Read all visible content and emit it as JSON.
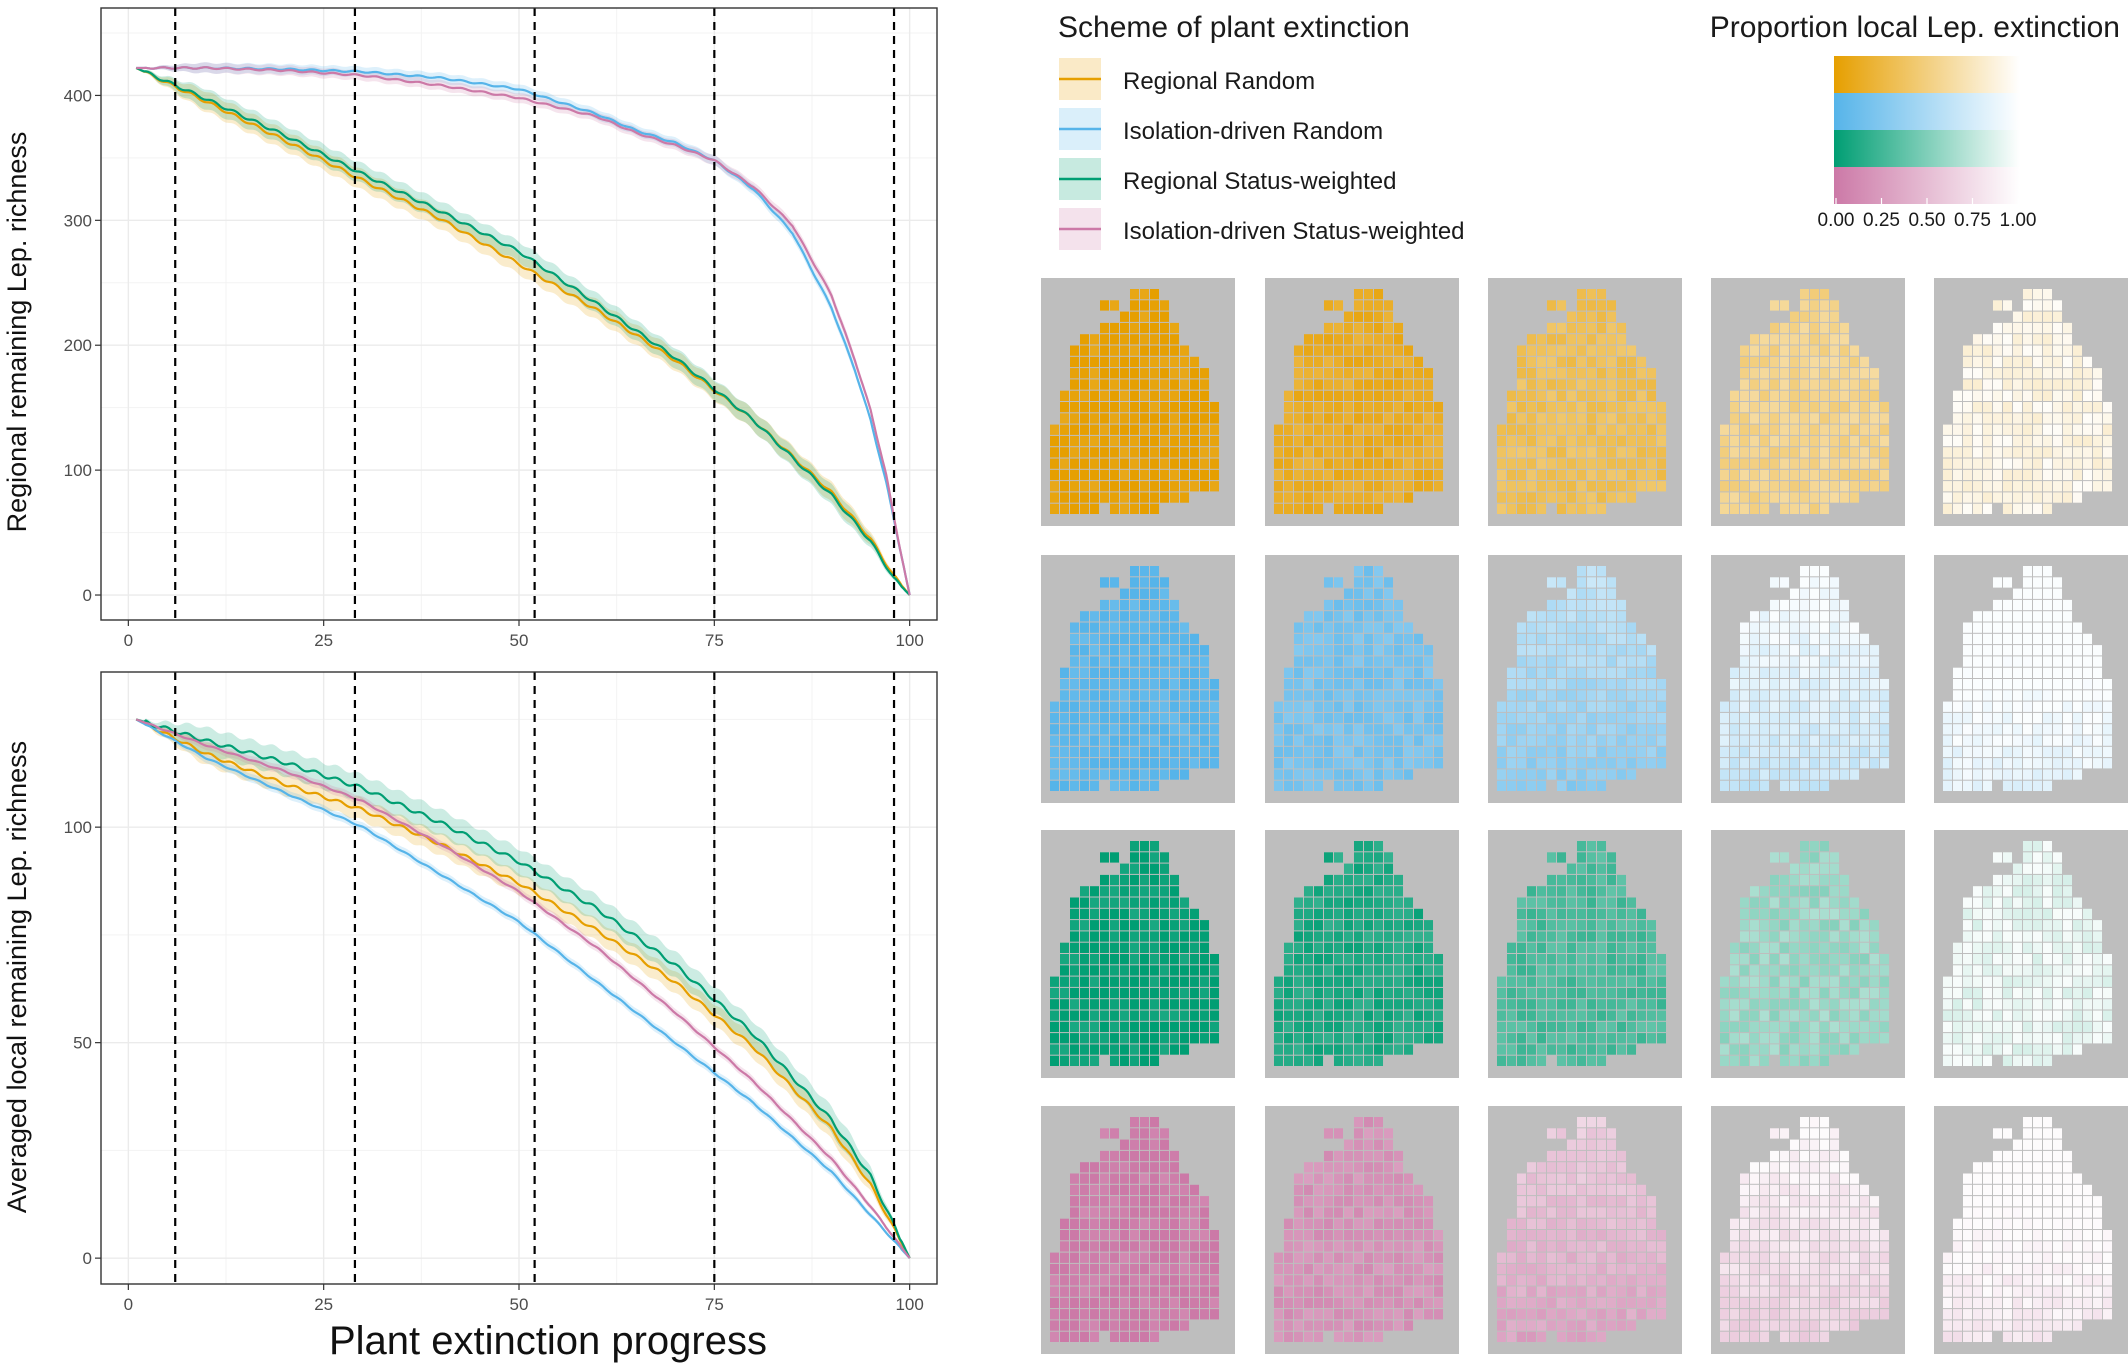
{
  "colors": {
    "regional_random": "#E69F00",
    "isolation_random": "#56B4E9",
    "regional_status": "#009E73",
    "isolation_status": "#CC79A7",
    "map_background": "#BEBEBE",
    "grid": "#EBEBEB"
  },
  "legend": {
    "title": "Scheme of plant extinction",
    "items": [
      {
        "label": "Regional Random",
        "color": "#E69F00"
      },
      {
        "label": "Isolation-driven Random",
        "color": "#56B4E9"
      },
      {
        "label": "Regional Status-weighted",
        "color": "#009E73"
      },
      {
        "label": "Isolation-driven Status-weighted",
        "color": "#CC79A7"
      }
    ]
  },
  "colorbar": {
    "title": "Proportion local Lep. extinction",
    "ticks": [
      "0.00",
      "0.25",
      "0.50",
      "0.75",
      "1.00"
    ]
  },
  "shared_xlabel": "Plant extinction progress",
  "map_grid": {
    "rows": [
      "Regional Random",
      "Isolation-driven Random",
      "Regional Status-weighted",
      "Isolation-driven Status-weighted"
    ],
    "stages": [
      6,
      29,
      52,
      75,
      98
    ],
    "mean_extinction_levels": [
      [
        0.02,
        0.15,
        0.35,
        0.55,
        0.9
      ],
      [
        0.03,
        0.2,
        0.45,
        0.8,
        0.98
      ],
      [
        0.02,
        0.12,
        0.3,
        0.6,
        0.92
      ],
      [
        0.03,
        0.2,
        0.45,
        0.78,
        0.97
      ]
    ]
  },
  "chart_data": [
    {
      "type": "line",
      "title": "",
      "xlabel": "",
      "ylabel": "Regional remaining Lep. richness",
      "xlim": [
        -3.5,
        103.5
      ],
      "ylim": [
        -20,
        470
      ],
      "xticks": [
        0,
        25,
        50,
        75,
        100
      ],
      "yticks": [
        0,
        100,
        200,
        300,
        400
      ],
      "vlines": [
        6,
        29,
        52,
        75,
        98
      ],
      "grid": true,
      "series": [
        {
          "name": "Regional Random",
          "color": "#E69F00",
          "x": [
            1,
            10,
            20,
            30,
            40,
            50,
            60,
            70,
            80,
            90,
            95,
            98,
            100
          ],
          "y": [
            422,
            395,
            364,
            332,
            301,
            265,
            228,
            188,
            140,
            82,
            45,
            15,
            0
          ],
          "band": 8
        },
        {
          "name": "Isolation-driven Random",
          "color": "#56B4E9",
          "x": [
            1,
            10,
            20,
            30,
            40,
            50,
            60,
            65,
            70,
            75,
            80,
            85,
            90,
            93,
            95,
            97,
            98,
            99,
            100
          ],
          "y": [
            422,
            422,
            421,
            419,
            414,
            405,
            385,
            372,
            362,
            348,
            325,
            290,
            230,
            180,
            140,
            90,
            60,
            30,
            0
          ],
          "band": 4
        },
        {
          "name": "Regional Status-weighted",
          "color": "#009E73",
          "x": [
            1,
            10,
            20,
            30,
            40,
            50,
            60,
            70,
            80,
            90,
            95,
            98,
            100
          ],
          "y": [
            422,
            397,
            368,
            337,
            307,
            275,
            233,
            190,
            140,
            80,
            43,
            13,
            0
          ],
          "band": 8
        },
        {
          "name": "Isolation-driven Status-weighted",
          "color": "#CC79A7",
          "x": [
            1,
            10,
            20,
            30,
            40,
            50,
            60,
            65,
            70,
            75,
            80,
            85,
            90,
            93,
            95,
            97,
            98,
            99,
            100
          ],
          "y": [
            422,
            422,
            420,
            416,
            408,
            398,
            383,
            370,
            360,
            348,
            327,
            296,
            240,
            188,
            148,
            96,
            62,
            30,
            0
          ],
          "band": 4
        }
      ]
    },
    {
      "type": "line",
      "title": "",
      "xlabel": "Plant extinction progress",
      "ylabel": "Averaged local remaining Lep. richness",
      "xlim": [
        -3.5,
        103.5
      ],
      "ylim": [
        -6,
        136
      ],
      "xticks": [
        0,
        25,
        50,
        75,
        100
      ],
      "yticks": [
        0,
        50,
        100
      ],
      "vlines": [
        6,
        29,
        52,
        75,
        98
      ],
      "grid": true,
      "series": [
        {
          "name": "Regional Random",
          "color": "#E69F00",
          "x": [
            1,
            10,
            20,
            30,
            40,
            50,
            60,
            70,
            80,
            90,
            95,
            100
          ],
          "y": [
            125,
            117,
            110,
            104,
            96,
            87,
            76,
            64,
            49,
            30,
            17,
            0
          ],
          "band": 2.5
        },
        {
          "name": "Isolation-driven Random",
          "color": "#56B4E9",
          "x": [
            1,
            10,
            20,
            30,
            40,
            50,
            60,
            70,
            80,
            90,
            95,
            100
          ],
          "y": [
            125,
            116,
            108,
            100,
            89,
            78,
            64,
            50,
            36,
            20,
            10,
            0
          ],
          "band": 1
        },
        {
          "name": "Regional Status-weighted",
          "color": "#009E73",
          "x": [
            1,
            10,
            20,
            30,
            40,
            50,
            60,
            70,
            80,
            90,
            95,
            100
          ],
          "y": [
            125,
            120,
            115,
            109,
            101,
            92,
            81,
            68,
            52,
            32,
            19,
            0
          ],
          "band": 3
        },
        {
          "name": "Isolation-driven Status-weighted",
          "color": "#CC79A7",
          "x": [
            1,
            10,
            20,
            30,
            40,
            50,
            60,
            70,
            80,
            90,
            95,
            100
          ],
          "y": [
            125,
            119,
            113,
            106,
            96,
            85,
            72,
            57,
            41,
            23,
            12,
            0
          ],
          "band": 1
        }
      ]
    }
  ]
}
